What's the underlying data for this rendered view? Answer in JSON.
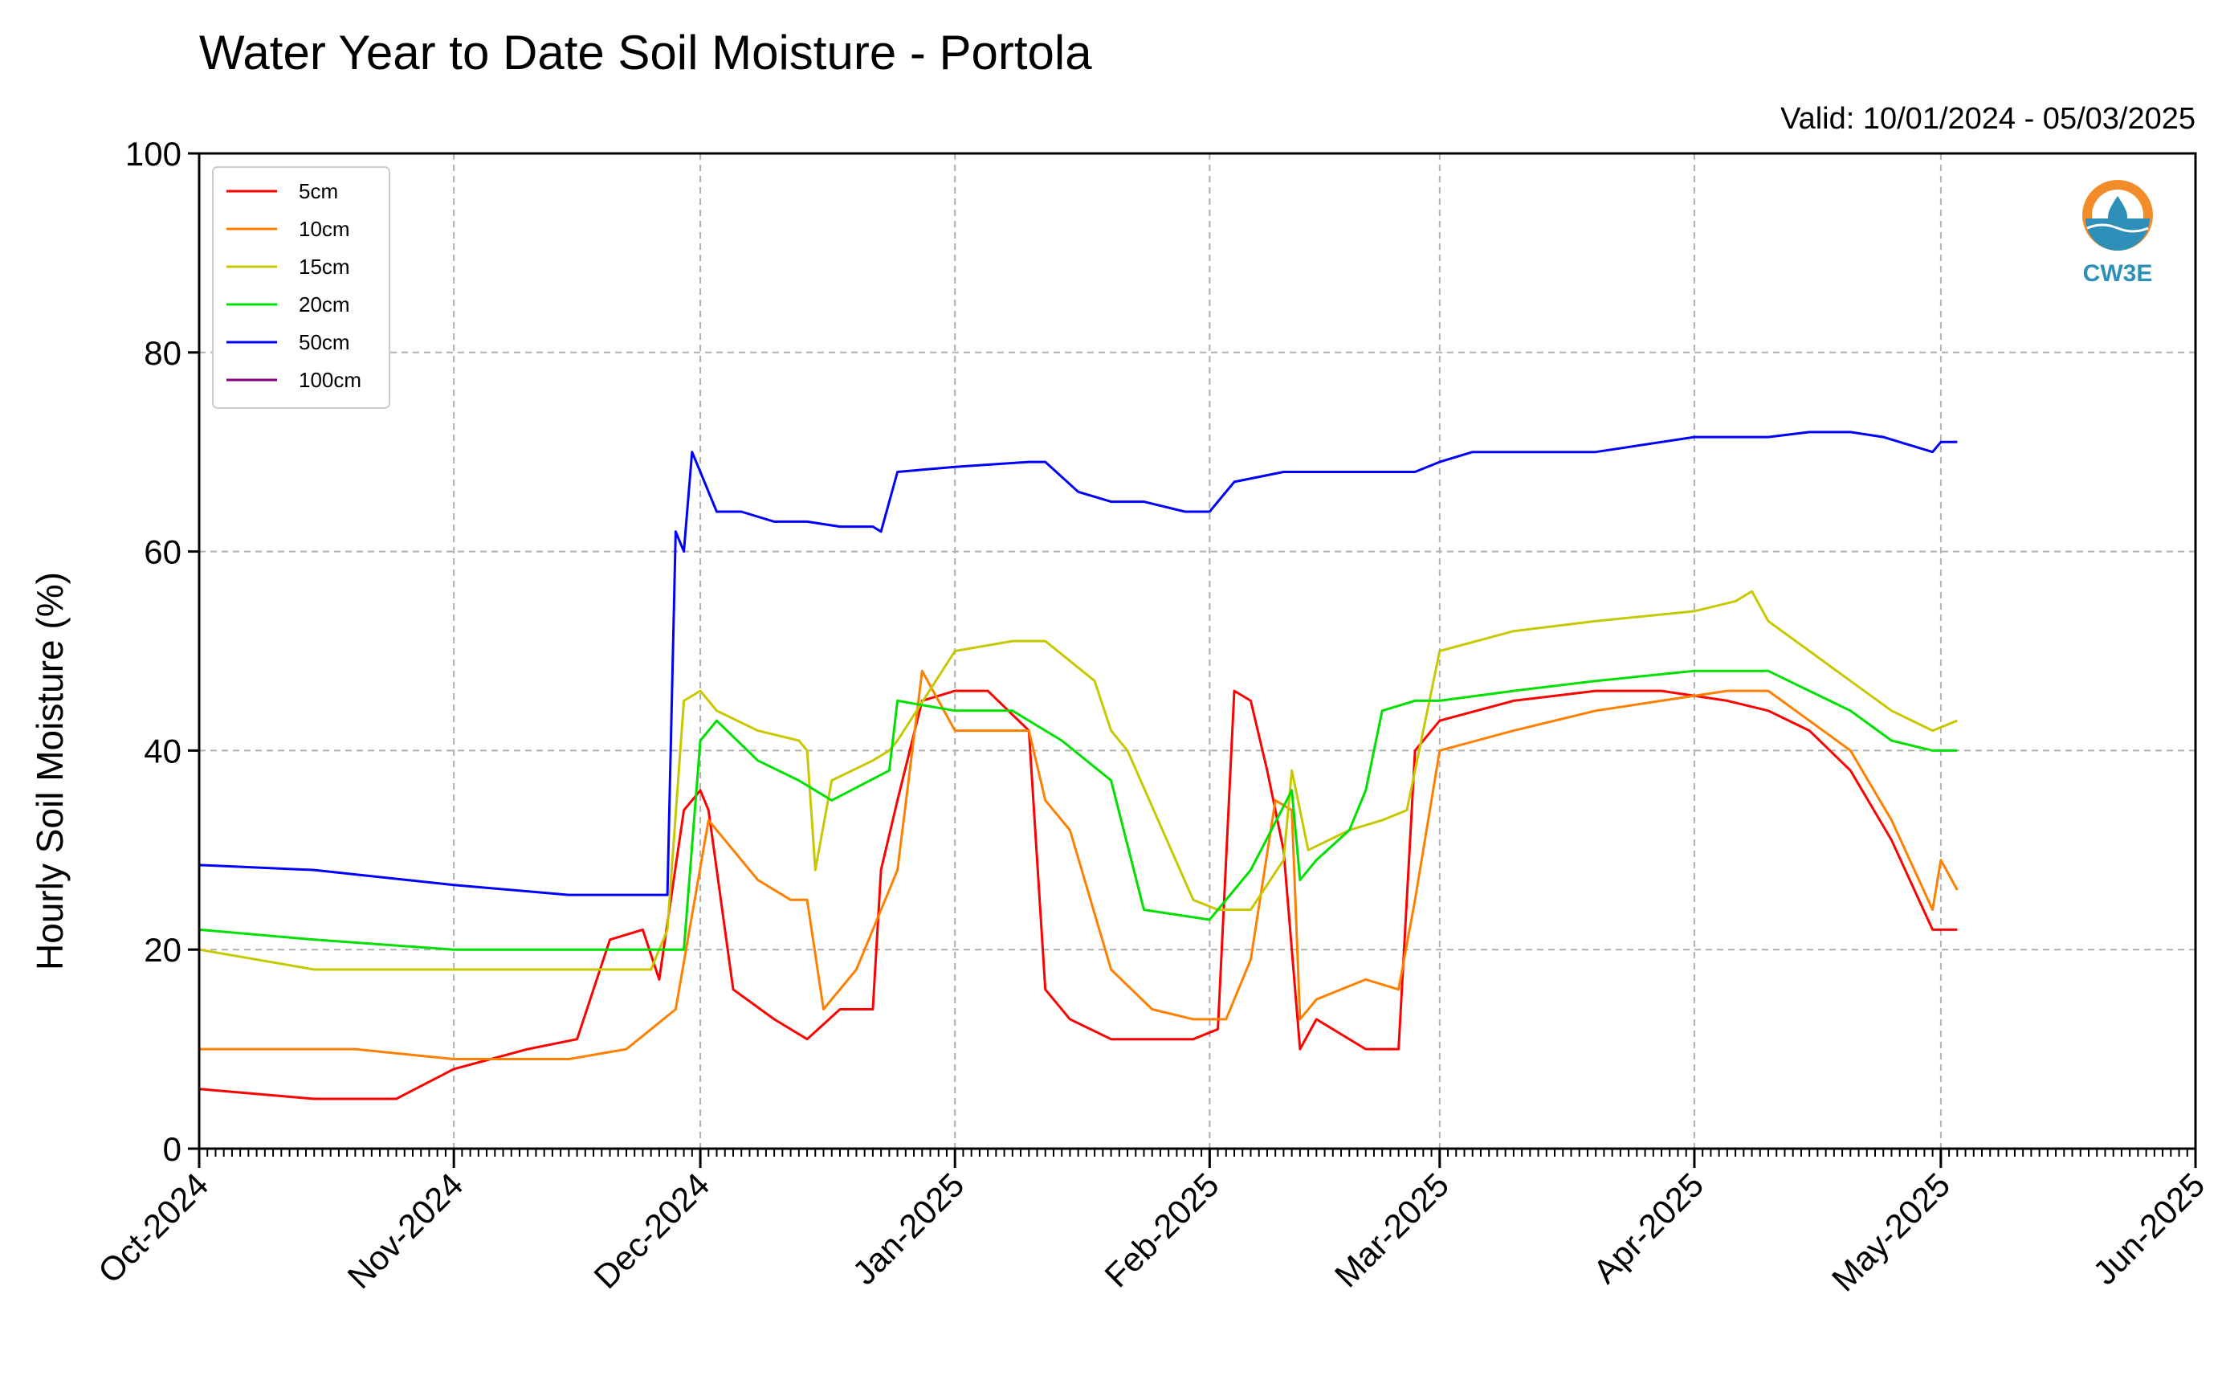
{
  "chart_data": {
    "type": "line",
    "title": "Water Year to Date Soil Moisture - Portola",
    "valid": "Valid: 10/01/2024 - 05/03/2025",
    "ylabel": "Hourly Soil Moisture (%)",
    "xlabel": "",
    "ylim": [
      0,
      100
    ],
    "yticks": [
      0,
      20,
      40,
      60,
      80,
      100
    ],
    "xlim": [
      "2024-10-01",
      "2025-06-01"
    ],
    "xticks": [
      {
        "label": "Oct-2024",
        "date": "2024-10-01"
      },
      {
        "label": "Nov-2024",
        "date": "2024-11-01"
      },
      {
        "label": "Dec-2024",
        "date": "2024-12-01"
      },
      {
        "label": "Jan-2025",
        "date": "2025-01-01"
      },
      {
        "label": "Feb-2025",
        "date": "2025-02-01"
      },
      {
        "label": "Mar-2025",
        "date": "2025-03-01"
      },
      {
        "label": "Apr-2025",
        "date": "2025-04-01"
      },
      {
        "label": "May-2025",
        "date": "2025-05-01"
      },
      {
        "label": "Jun-2025",
        "date": "2025-06-01"
      }
    ],
    "grid": true,
    "legend_position": "top-left",
    "series": [
      {
        "name": "5cm",
        "color": "#ff0000",
        "x": [
          "2024-10-01",
          "2024-10-15",
          "2024-10-25",
          "2024-11-01",
          "2024-11-10",
          "2024-11-16",
          "2024-11-20",
          "2024-11-24",
          "2024-11-26",
          "2024-11-29",
          "2024-12-01",
          "2024-12-02",
          "2024-12-05",
          "2024-12-10",
          "2024-12-14",
          "2024-12-18",
          "2024-12-22",
          "2024-12-23",
          "2024-12-25",
          "2024-12-28",
          "2025-01-01",
          "2025-01-05",
          "2025-01-10",
          "2025-01-12",
          "2025-01-15",
          "2025-01-20",
          "2025-01-25",
          "2025-01-30",
          "2025-02-02",
          "2025-02-04",
          "2025-02-06",
          "2025-02-08",
          "2025-02-10",
          "2025-02-12",
          "2025-02-14",
          "2025-02-20",
          "2025-02-24",
          "2025-02-26",
          "2025-03-01",
          "2025-03-10",
          "2025-03-20",
          "2025-03-28",
          "2025-04-05",
          "2025-04-10",
          "2025-04-15",
          "2025-04-20",
          "2025-04-25",
          "2025-04-30",
          "2025-05-03"
        ],
        "values": [
          6,
          5,
          5,
          8,
          10,
          11,
          21,
          22,
          17,
          34,
          36,
          34,
          16,
          13,
          11,
          14,
          14,
          28,
          35,
          45,
          46,
          46,
          42,
          16,
          13,
          11,
          11,
          11,
          12,
          46,
          45,
          38,
          30,
          10,
          13,
          10,
          10,
          40,
          43,
          45,
          46,
          46,
          45,
          44,
          42,
          38,
          31,
          22,
          22
        ]
      },
      {
        "name": "10cm",
        "color": "#ff8000",
        "x": [
          "2024-10-01",
          "2024-10-20",
          "2024-11-01",
          "2024-11-15",
          "2024-11-22",
          "2024-11-25",
          "2024-11-28",
          "2024-12-02",
          "2024-12-08",
          "2024-12-12",
          "2024-12-14",
          "2024-12-16",
          "2024-12-20",
          "2024-12-24",
          "2024-12-25",
          "2024-12-28",
          "2025-01-01",
          "2025-01-05",
          "2025-01-10",
          "2025-01-12",
          "2025-01-15",
          "2025-01-20",
          "2025-01-25",
          "2025-01-30",
          "2025-02-03",
          "2025-02-06",
          "2025-02-09",
          "2025-02-11",
          "2025-02-12",
          "2025-02-14",
          "2025-02-20",
          "2025-02-24",
          "2025-02-26",
          "2025-03-01",
          "2025-03-10",
          "2025-03-20",
          "2025-03-28",
          "2025-04-05",
          "2025-04-10",
          "2025-04-15",
          "2025-04-20",
          "2025-04-25",
          "2025-04-30",
          "2025-05-01",
          "2025-05-03"
        ],
        "values": [
          10,
          10,
          9,
          9,
          10,
          12,
          14,
          33,
          27,
          25,
          25,
          14,
          18,
          26,
          28,
          48,
          42,
          42,
          42,
          35,
          32,
          18,
          14,
          13,
          13,
          19,
          35,
          34,
          13,
          15,
          17,
          16,
          25,
          40,
          42,
          44,
          45,
          46,
          46,
          43,
          40,
          33,
          24,
          29,
          26
        ]
      },
      {
        "name": "15cm",
        "color": "#c8c800",
        "x": [
          "2024-10-01",
          "2024-10-15",
          "2024-11-01",
          "2024-11-15",
          "2024-11-25",
          "2024-11-27",
          "2024-11-29",
          "2024-12-01",
          "2024-12-03",
          "2024-12-08",
          "2024-12-13",
          "2024-12-14",
          "2024-12-15",
          "2024-12-17",
          "2024-12-22",
          "2024-12-24",
          "2024-12-25",
          "2025-01-01",
          "2025-01-08",
          "2025-01-12",
          "2025-01-18",
          "2025-01-20",
          "2025-01-22",
          "2025-01-30",
          "2025-02-02",
          "2025-02-06",
          "2025-02-10",
          "2025-02-11",
          "2025-02-13",
          "2025-02-18",
          "2025-02-22",
          "2025-02-25",
          "2025-03-01",
          "2025-03-10",
          "2025-03-20",
          "2025-04-01",
          "2025-04-06",
          "2025-04-08",
          "2025-04-10",
          "2025-04-15",
          "2025-04-20",
          "2025-04-25",
          "2025-04-30",
          "2025-05-03"
        ],
        "values": [
          20,
          18,
          18,
          18,
          18,
          22,
          45,
          46,
          44,
          42,
          41,
          40,
          28,
          37,
          39,
          40,
          41,
          50,
          51,
          51,
          47,
          42,
          40,
          25,
          24,
          24,
          29,
          38,
          30,
          32,
          33,
          34,
          50,
          52,
          53,
          54,
          55,
          56,
          53,
          50,
          47,
          44,
          42,
          43
        ]
      },
      {
        "name": "20cm",
        "color": "#00e000",
        "x": [
          "2024-10-01",
          "2024-10-15",
          "2024-11-01",
          "2024-11-20",
          "2024-11-27",
          "2024-11-29",
          "2024-12-01",
          "2024-12-03",
          "2024-12-08",
          "2024-12-13",
          "2024-12-17",
          "2024-12-24",
          "2024-12-25",
          "2025-01-01",
          "2025-01-08",
          "2025-01-14",
          "2025-01-20",
          "2025-01-24",
          "2025-02-01",
          "2025-02-06",
          "2025-02-11",
          "2025-02-12",
          "2025-02-14",
          "2025-02-18",
          "2025-02-20",
          "2025-02-22",
          "2025-02-26",
          "2025-03-01",
          "2025-03-10",
          "2025-03-20",
          "2025-04-01",
          "2025-04-10",
          "2025-04-15",
          "2025-04-20",
          "2025-04-25",
          "2025-04-30",
          "2025-05-03"
        ],
        "values": [
          22,
          21,
          20,
          20,
          20,
          20,
          41,
          43,
          39,
          37,
          35,
          38,
          45,
          44,
          44,
          41,
          37,
          24,
          23,
          28,
          36,
          27,
          29,
          32,
          36,
          44,
          45,
          45,
          46,
          47,
          48,
          48,
          46,
          44,
          41,
          40,
          40
        ]
      },
      {
        "name": "50cm",
        "color": "#0000ff",
        "x": [
          "2024-10-01",
          "2024-10-15",
          "2024-11-01",
          "2024-11-15",
          "2024-11-27",
          "2024-11-28",
          "2024-11-29",
          "2024-11-30",
          "2024-12-01",
          "2024-12-03",
          "2024-12-06",
          "2024-12-10",
          "2024-12-14",
          "2024-12-18",
          "2024-12-22",
          "2024-12-23",
          "2024-12-25",
          "2025-01-01",
          "2025-01-10",
          "2025-01-12",
          "2025-01-16",
          "2025-01-20",
          "2025-01-24",
          "2025-01-29",
          "2025-02-01",
          "2025-02-04",
          "2025-02-10",
          "2025-02-14",
          "2025-02-20",
          "2025-02-26",
          "2025-03-01",
          "2025-03-05",
          "2025-03-10",
          "2025-03-20",
          "2025-04-01",
          "2025-04-10",
          "2025-04-15",
          "2025-04-20",
          "2025-04-24",
          "2025-04-26",
          "2025-04-30",
          "2025-05-01",
          "2025-05-03"
        ],
        "values": [
          28.5,
          28,
          26.5,
          25.5,
          25.5,
          62,
          60,
          70,
          68,
          64,
          64,
          63,
          63,
          62.5,
          62.5,
          62,
          68,
          68.5,
          69,
          69,
          66,
          65,
          65,
          64,
          64,
          67,
          68,
          68,
          68,
          68,
          69,
          70,
          70,
          70,
          71.5,
          71.5,
          72,
          72,
          71.5,
          71,
          70,
          71,
          71
        ]
      },
      {
        "name": "100cm",
        "color": "#800080",
        "x": [],
        "values": []
      }
    ]
  },
  "logo": {
    "text": "CW3E",
    "color": "#2e8fb8",
    "accent": "#f28c28"
  }
}
